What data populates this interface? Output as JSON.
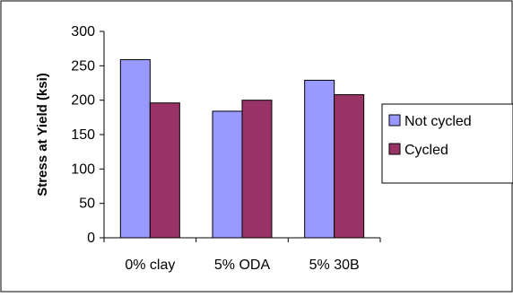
{
  "chart_data": {
    "type": "bar",
    "title": "",
    "xlabel": "",
    "ylabel": "Stress at Yield (ksi)",
    "ylim": [
      0,
      300
    ],
    "ytick_step": 50,
    "yticks": [
      "0",
      "50",
      "100",
      "150",
      "200",
      "250",
      "300"
    ],
    "grid": false,
    "legend_position": "right",
    "categories": [
      "0% clay",
      "5% ODA",
      "5% 30B"
    ],
    "series": [
      {
        "name": "Not cycled",
        "color": "#9999ff",
        "values": [
          259,
          184,
          229
        ]
      },
      {
        "name": "Cycled",
        "color": "#993366",
        "values": [
          196,
          200,
          208
        ]
      }
    ]
  }
}
